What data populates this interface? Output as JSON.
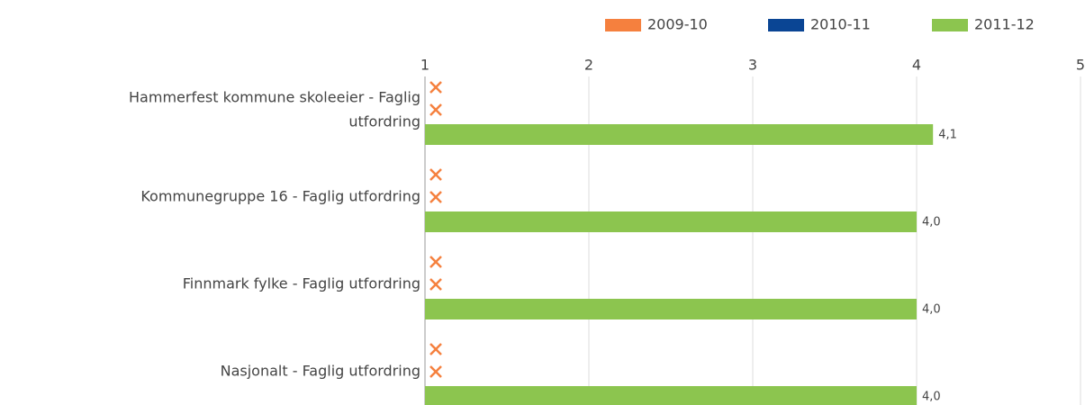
{
  "chart_data": {
    "type": "bar",
    "orientation": "horizontal",
    "categories": [
      "Hammerfest kommune skoleeier - Faglig utfordring",
      "Kommunegruppe 16 - Faglig utfordring",
      "Finnmark fylke - Faglig utfordring",
      "Nasjonalt - Faglig utfordring"
    ],
    "series": [
      {
        "name": "2009-10",
        "color": "#f5803e",
        "values": [
          null,
          null,
          null,
          null
        ]
      },
      {
        "name": "2010-11",
        "color": "#0a4594",
        "values": [
          null,
          null,
          null,
          null
        ]
      },
      {
        "name": "2011-12",
        "color": "#8cc54f",
        "values": [
          4.1,
          4.0,
          4.0,
          4.0
        ],
        "value_labels": [
          "4,1",
          "4,0",
          "4,0",
          "4,0"
        ]
      }
    ],
    "xlim": [
      1,
      5
    ],
    "xticks": [
      1,
      2,
      3,
      4,
      5
    ],
    "grid": true,
    "legend": "top-right",
    "missing_marker_color": "#f5803e"
  }
}
